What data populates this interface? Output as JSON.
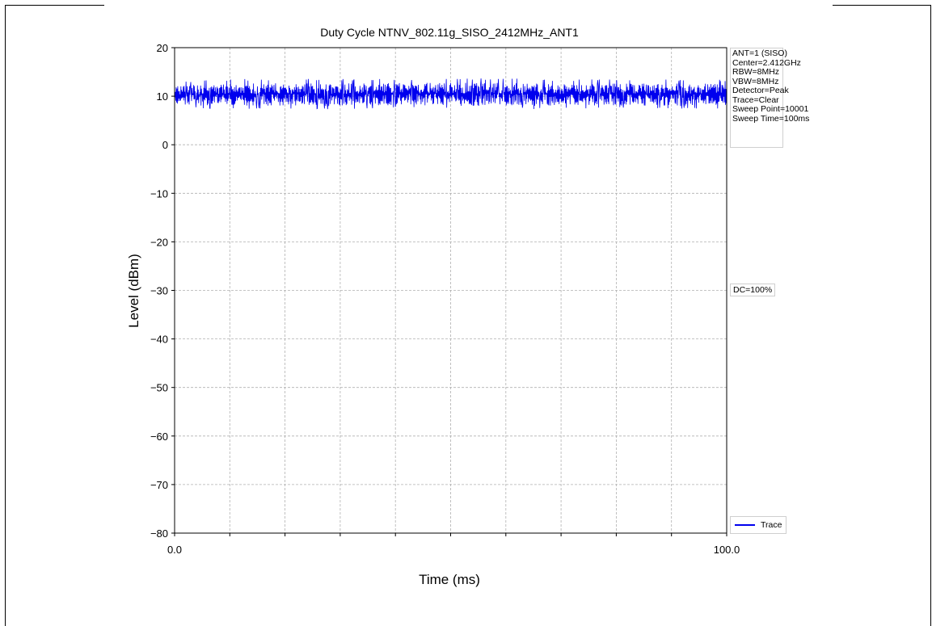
{
  "chart_data": {
    "type": "line",
    "title": "Duty Cycle NTNV_802.11g_SISO_2412MHz_ANT1",
    "xlabel": "Time (ms)",
    "ylabel": "Level (dBm)",
    "xlim": [
      0.0,
      100.0
    ],
    "ylim": [
      -80,
      20
    ],
    "x_tick_labels": [
      "0.0",
      "100.0"
    ],
    "y_tick_labels": [
      "20",
      "10",
      "0",
      "−10",
      "−20",
      "−30",
      "−40",
      "−50",
      "−60",
      "−70",
      "−80"
    ],
    "grid": true,
    "series": [
      {
        "name": "Trace",
        "color": "#0000ee",
        "x": [
          0,
          10,
          20,
          30,
          40,
          50,
          60,
          70,
          80,
          90,
          100
        ],
        "y_min": [
          7.5,
          7.3,
          7.4,
          7.3,
          7.5,
          7.4,
          7.3,
          7.4,
          7.5,
          7.3,
          7.5
        ],
        "y_max": [
          13.0,
          13.5,
          13.7,
          13.6,
          13.7,
          13.7,
          13.7,
          13.4,
          13.5,
          13.6,
          13.5
        ]
      }
    ],
    "annotations": {
      "info_lines": [
        "ANT=1 (SISO)",
        "Center=2.412GHz",
        "RBW=8MHz",
        "VBW=8MHz",
        "Detector=Peak",
        "Trace=Clear",
        "Sweep Point=10001",
        "Sweep Time=100ms"
      ],
      "duty_cycle": "DC=100%"
    },
    "legend": {
      "placement": "bottom-right",
      "entries": [
        "Trace"
      ]
    }
  }
}
